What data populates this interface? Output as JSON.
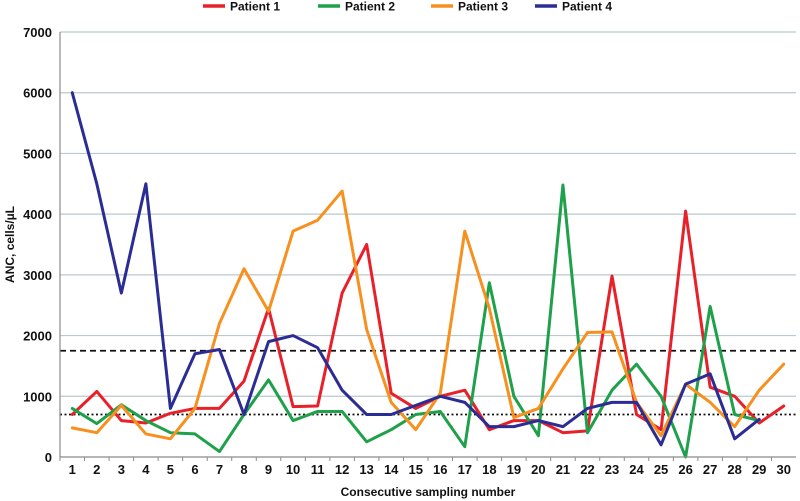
{
  "chart_data": {
    "type": "line",
    "title": "",
    "xlabel": "Consecutive sampling number",
    "ylabel": "ANC, cells/µL",
    "x": [
      1,
      2,
      3,
      4,
      5,
      6,
      7,
      8,
      9,
      10,
      11,
      12,
      13,
      14,
      15,
      16,
      17,
      18,
      19,
      20,
      21,
      22,
      23,
      24,
      25,
      26,
      27,
      28,
      29,
      30
    ],
    "xlim": [
      0.5,
      30.5
    ],
    "ylim": [
      0,
      7000
    ],
    "yticks": [
      0,
      1000,
      2000,
      3000,
      4000,
      5000,
      6000,
      7000
    ],
    "grid": "horizontal",
    "legend_position": "top",
    "series": [
      {
        "name": "Patient 1",
        "color": "#e8202a",
        "x": [
          1,
          2,
          3,
          4,
          5,
          6,
          7,
          8,
          9,
          10,
          11,
          12,
          13,
          14,
          15,
          16,
          17,
          18,
          19,
          20,
          21,
          22,
          23,
          24,
          25,
          26,
          27,
          28,
          29,
          30
        ],
        "values": [
          700,
          1080,
          600,
          560,
          720,
          800,
          800,
          1250,
          2450,
          830,
          840,
          2700,
          3500,
          1050,
          800,
          1000,
          1100,
          450,
          600,
          600,
          400,
          430,
          2980,
          700,
          450,
          4050,
          1150,
          1000,
          560,
          840
        ]
      },
      {
        "name": "Patient 2",
        "color": "#1fa04a",
        "x": [
          1,
          2,
          3,
          4,
          5,
          6,
          7,
          8,
          9,
          10,
          11,
          12,
          13,
          14,
          15,
          16,
          17,
          18,
          19,
          20,
          21,
          22,
          23,
          24,
          25,
          26,
          27,
          28,
          29
        ],
        "values": [
          800,
          550,
          860,
          600,
          400,
          380,
          90,
          700,
          1270,
          600,
          750,
          750,
          250,
          450,
          700,
          750,
          170,
          2870,
          1000,
          350,
          4480,
          400,
          1100,
          1530,
          1000,
          0,
          2480,
          700,
          600
        ]
      },
      {
        "name": "Patient 3",
        "color": "#f7901e",
        "x": [
          1,
          2,
          3,
          4,
          5,
          6,
          7,
          8,
          9,
          10,
          11,
          12,
          13,
          14,
          15,
          16,
          17,
          18,
          19,
          20,
          21,
          22,
          23,
          24,
          25,
          26,
          27,
          28,
          29,
          30
        ],
        "values": [
          480,
          400,
          850,
          380,
          300,
          800,
          2200,
          3100,
          2400,
          3720,
          3900,
          4380,
          2100,
          900,
          450,
          1050,
          3720,
          2450,
          650,
          800,
          1450,
          2050,
          2060,
          900,
          350,
          1200,
          900,
          500,
          1100,
          1530
        ]
      },
      {
        "name": "Patient 4",
        "color": "#2b2c94",
        "x": [
          1,
          2,
          3,
          4,
          5,
          6,
          7,
          8,
          9,
          10,
          11,
          12,
          13,
          14,
          15,
          16,
          17,
          18,
          19,
          20,
          21,
          22,
          23,
          24,
          25,
          26,
          27,
          28,
          29
        ],
        "values": [
          6000,
          4500,
          2700,
          4500,
          800,
          1700,
          1770,
          700,
          1900,
          2000,
          1800,
          1100,
          700,
          700,
          850,
          1000,
          900,
          500,
          500,
          600,
          500,
          800,
          900,
          900,
          200,
          1200,
          1370,
          300,
          620
        ]
      }
    ],
    "reference_lines": [
      {
        "value": 1750,
        "style": "dashed"
      },
      {
        "value": 700,
        "style": "dotted"
      }
    ]
  }
}
